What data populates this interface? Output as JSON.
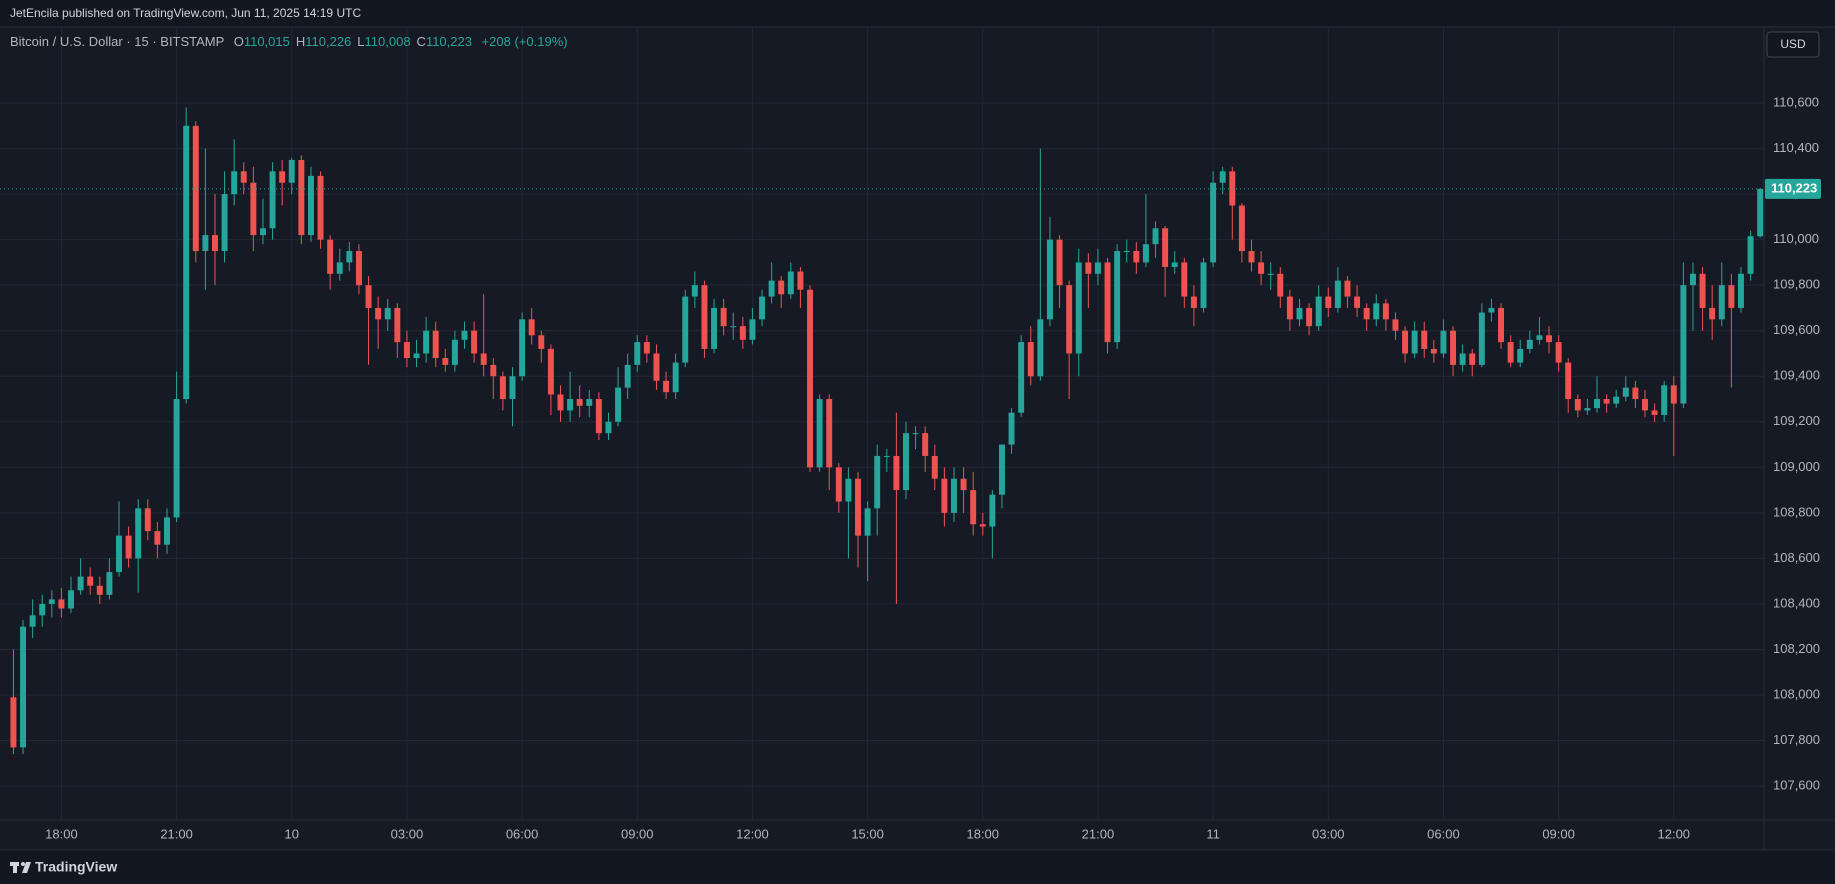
{
  "header": {
    "publisher": "JetEncila published on TradingView.com, Jun 11, 2025 14:19 UTC",
    "symbol": "Bitcoin / U.S. Dollar · 15 · BITSTAMP",
    "ohlc": [
      {
        "key": "O",
        "text": "110,015"
      },
      {
        "key": "H",
        "text": "110,226"
      },
      {
        "key": "L",
        "text": "110,008"
      },
      {
        "key": "C",
        "text": "110,223"
      }
    ],
    "change": "+208 (+0.19%)"
  },
  "footer": {
    "brand": "TradingView"
  },
  "chart_data": {
    "type": "candlestick",
    "currency": "USD",
    "up_color": "#26a69a",
    "down_color": "#ef5350",
    "grid": true,
    "open": [
      107990,
      107770,
      108300,
      108350,
      108400,
      108420,
      108380,
      108460,
      108520,
      108480,
      108440,
      108540,
      108700,
      108600,
      108820,
      108720,
      108660,
      108780,
      109300,
      110500,
      109950,
      110020,
      109950,
      110200,
      110300,
      110250,
      110020,
      110050,
      110300,
      110250,
      110350,
      110020,
      110280,
      110000,
      109850,
      109900,
      109950,
      109800,
      109700,
      109650,
      109700,
      109550,
      109480,
      109500,
      109600,
      109480,
      109450,
      109560,
      109600,
      109500,
      109450,
      109400,
      109300,
      109400,
      109650,
      109580,
      109520,
      109320,
      109250,
      109300,
      109270,
      109300,
      109150,
      109200,
      109350,
      109450,
      109550,
      109500,
      109380,
      109330,
      109460,
      109750,
      109800,
      109520,
      109700,
      109620,
      109620,
      109560,
      109650,
      109750,
      109820,
      109760,
      109860,
      109780,
      109000,
      109300,
      109000,
      108850,
      108950,
      108700,
      108820,
      109050,
      109050,
      108900,
      109150,
      109150,
      109050,
      108950,
      108800,
      108950,
      108900,
      108750,
      108740,
      108880,
      109100,
      109240,
      109550,
      109400,
      109650,
      110000,
      109800,
      109500,
      109900,
      109850,
      109900,
      109550,
      109950,
      109950,
      109900,
      109980,
      110050,
      109880,
      109900,
      109750,
      109700,
      109900,
      110250,
      110300,
      110150,
      109950,
      109900,
      109850,
      109850,
      109750,
      109650,
      109700,
      109620,
      109750,
      109700,
      109820,
      109750,
      109700,
      109650,
      109720,
      109650,
      109600,
      109500,
      109600,
      109520,
      109500,
      109600,
      109450,
      109500,
      109450,
      109680,
      109700,
      109550,
      109460,
      109520,
      109560,
      109580,
      109550,
      109460,
      109300,
      109250,
      109260,
      109300,
      109280,
      109310,
      109350,
      109300,
      109250,
      109230,
      109360,
      109280,
      109800,
      109850,
      109700,
      109650,
      109800,
      109700,
      109850,
      110015
    ],
    "high": [
      108200,
      108330,
      108420,
      108440,
      108460,
      108470,
      108520,
      108600,
      108560,
      108520,
      108600,
      108850,
      108740,
      108860,
      108860,
      108760,
      108820,
      109420,
      110580,
      110520,
      110400,
      110200,
      110300,
      110440,
      110340,
      110320,
      110180,
      110340,
      110350,
      110360,
      110370,
      110320,
      110300,
      110020,
      109960,
      109990,
      109980,
      109840,
      109750,
      109740,
      109720,
      109600,
      109560,
      109660,
      109640,
      109520,
      109600,
      109640,
      109640,
      109760,
      109480,
      109420,
      109440,
      109680,
      109700,
      109600,
      109540,
      109360,
      109420,
      109360,
      109340,
      109330,
      109240,
      109440,
      109500,
      109580,
      109580,
      109540,
      109420,
      109500,
      109780,
      109860,
      109820,
      109740,
      109740,
      109680,
      109660,
      109700,
      109780,
      109900,
      109840,
      109900,
      109880,
      109800,
      109320,
      109320,
      109020,
      109000,
      108980,
      108850,
      109100,
      109080,
      109240,
      109200,
      109180,
      109180,
      109100,
      109000,
      109000,
      109000,
      108980,
      108800,
      108900,
      109100,
      109260,
      109580,
      109620,
      110400,
      110100,
      110020,
      109820,
      109960,
      109940,
      109960,
      109920,
      109980,
      110000,
      109990,
      110200,
      110080,
      110060,
      109950,
      109920,
      109800,
      109920,
      110300,
      110320,
      110320,
      110160,
      110000,
      109950,
      109900,
      109880,
      109780,
      109740,
      109720,
      109800,
      109790,
      109880,
      109840,
      109800,
      109720,
      109760,
      109740,
      109680,
      109620,
      109640,
      109640,
      109560,
      109650,
      109620,
      109540,
      109520,
      109720,
      109740,
      109720,
      109580,
      109560,
      109600,
      109660,
      109620,
      109580,
      109480,
      109320,
      109300,
      109400,
      109320,
      109340,
      109400,
      109380,
      109340,
      109280,
      109380,
      109400,
      109900,
      109900,
      109880,
      109800,
      109900,
      109850,
      109880,
      110040,
      110226
    ],
    "low": [
      107740,
      107740,
      108250,
      108300,
      108340,
      108340,
      108360,
      108440,
      108440,
      108400,
      108420,
      108520,
      108560,
      108450,
      108680,
      108600,
      108620,
      108760,
      109280,
      109900,
      109780,
      109800,
      109900,
      110150,
      110200,
      109950,
      109980,
      110000,
      110150,
      110200,
      109980,
      109990,
      109960,
      109780,
      109820,
      109860,
      109760,
      109450,
      109520,
      109600,
      109480,
      109440,
      109440,
      109460,
      109440,
      109420,
      109420,
      109520,
      109460,
      109400,
      109300,
      109250,
      109180,
      109380,
      109540,
      109460,
      109230,
      109200,
      109200,
      109220,
      109220,
      109120,
      109120,
      109180,
      109300,
      109420,
      109460,
      109340,
      109300,
      109300,
      109440,
      109700,
      109480,
      109500,
      109580,
      109560,
      109520,
      109540,
      109620,
      109720,
      109700,
      109740,
      109700,
      108980,
      108980,
      108900,
      108800,
      108600,
      108560,
      108500,
      108700,
      108980,
      108400,
      108860,
      109080,
      108980,
      108900,
      108740,
      108760,
      108800,
      108700,
      108700,
      108600,
      108820,
      109060,
      109220,
      109360,
      109380,
      109620,
      109700,
      109300,
      109400,
      109700,
      109800,
      109500,
      109520,
      109900,
      109850,
      109880,
      109920,
      109750,
      109850,
      109700,
      109620,
      109680,
      109880,
      110200,
      110000,
      109900,
      109860,
      109800,
      109780,
      109700,
      109600,
      109620,
      109580,
      109600,
      109660,
      109680,
      109700,
      109660,
      109600,
      109620,
      109600,
      109560,
      109460,
      109480,
      109480,
      109460,
      109480,
      109400,
      109420,
      109400,
      109440,
      109640,
      109520,
      109440,
      109440,
      109500,
      109540,
      109500,
      109420,
      109240,
      109220,
      109230,
      109240,
      109240,
      109260,
      109290,
      109260,
      109220,
      109200,
      109200,
      109050,
      109260,
      109600,
      109600,
      109560,
      109620,
      109350,
      109680,
      109820,
      110008
    ],
    "close": [
      107770,
      108300,
      108350,
      108400,
      108420,
      108380,
      108460,
      108520,
      108480,
      108440,
      108540,
      108700,
      108600,
      108820,
      108720,
      108660,
      108780,
      109300,
      110500,
      109950,
      110020,
      109950,
      110200,
      110300,
      110250,
      110020,
      110050,
      110300,
      110250,
      110350,
      110020,
      110280,
      110000,
      109850,
      109900,
      109950,
      109800,
      109700,
      109650,
      109700,
      109550,
      109480,
      109500,
      109600,
      109480,
      109450,
      109560,
      109600,
      109500,
      109450,
      109400,
      109300,
      109400,
      109650,
      109580,
      109520,
      109320,
      109250,
      109300,
      109270,
      109300,
      109150,
      109200,
      109350,
      109450,
      109550,
      109500,
      109380,
      109330,
      109460,
      109750,
      109800,
      109520,
      109700,
      109620,
      109620,
      109560,
      109650,
      109750,
      109820,
      109760,
      109860,
      109780,
      109000,
      109300,
      109000,
      108850,
      108950,
      108700,
      108820,
      109050,
      109050,
      108900,
      109150,
      109150,
      109050,
      108950,
      108800,
      108950,
      108900,
      108750,
      108740,
      108880,
      109100,
      109240,
      109550,
      109400,
      109650,
      110000,
      109800,
      109500,
      109900,
      109850,
      109900,
      109550,
      109950,
      109950,
      109900,
      109980,
      110050,
      109880,
      109900,
      109750,
      109700,
      109900,
      110250,
      110300,
      110150,
      109950,
      109900,
      109850,
      109850,
      109750,
      109650,
      109700,
      109620,
      109750,
      109700,
      109820,
      109750,
      109700,
      109650,
      109720,
      109650,
      109600,
      109500,
      109600,
      109520,
      109500,
      109600,
      109450,
      109500,
      109450,
      109680,
      109700,
      109550,
      109460,
      109520,
      109560,
      109580,
      109550,
      109460,
      109300,
      109250,
      109260,
      109300,
      109280,
      109310,
      109350,
      109300,
      109250,
      109230,
      109360,
      109280,
      109800,
      109850,
      109700,
      109650,
      109800,
      109700,
      109850,
      110015,
      110223
    ],
    "last_price": {
      "value": 110223,
      "label": "110,223"
    },
    "ylim": [
      107451,
      110934
    ],
    "yticks": [
      {
        "value": 107600,
        "label": "107,600"
      },
      {
        "value": 107800,
        "label": "107,800"
      },
      {
        "value": 108000,
        "label": "108,000"
      },
      {
        "value": 108200,
        "label": "108,200"
      },
      {
        "value": 108400,
        "label": "108,400"
      },
      {
        "value": 108600,
        "label": "108,600"
      },
      {
        "value": 108800,
        "label": "108,800"
      },
      {
        "value": 109000,
        "label": "109,000"
      },
      {
        "value": 109200,
        "label": "109,200"
      },
      {
        "value": 109400,
        "label": "109,400"
      },
      {
        "value": 109600,
        "label": "109,600"
      },
      {
        "value": 109800,
        "label": "109,800"
      },
      {
        "value": 110000,
        "label": "110,000"
      },
      {
        "value": 110200,
        "label": "110,200"
      },
      {
        "value": 110400,
        "label": "110,400"
      },
      {
        "value": 110600,
        "label": "110,600"
      }
    ],
    "xlim": [
      -1.4,
      182.4
    ],
    "xticks": [
      {
        "value": 5,
        "label": "18:00"
      },
      {
        "value": 17,
        "label": "21:00"
      },
      {
        "value": 29,
        "label": "10"
      },
      {
        "value": 41,
        "label": "03:00"
      },
      {
        "value": 53,
        "label": "06:00"
      },
      {
        "value": 65,
        "label": "09:00"
      },
      {
        "value": 77,
        "label": "12:00"
      },
      {
        "value": 89,
        "label": "15:00"
      },
      {
        "value": 101,
        "label": "18:00"
      },
      {
        "value": 113,
        "label": "21:00"
      },
      {
        "value": 125,
        "label": "11"
      },
      {
        "value": 137,
        "label": "03:00"
      },
      {
        "value": 149,
        "label": "06:00"
      },
      {
        "value": 161,
        "label": "09:00"
      },
      {
        "value": 173,
        "label": "12:00"
      }
    ]
  }
}
